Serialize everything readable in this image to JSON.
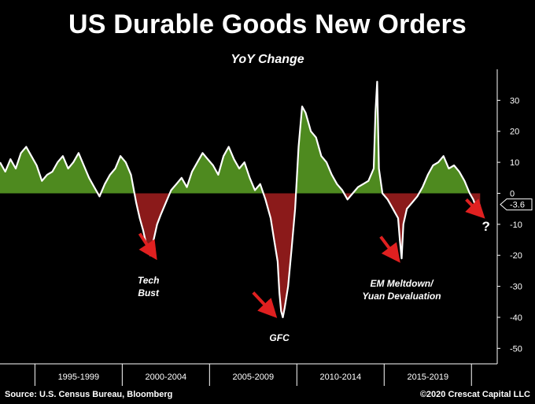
{
  "page": {
    "title": "US Durable Goods New Orders",
    "source": "Source: U.S. Census Bureau, Bloomberg",
    "copyright": "©2020 Crescat Capital LLC"
  },
  "chart_data": {
    "type": "area",
    "title": "US Durable Goods New Orders",
    "subtitle": "YoY Change",
    "xlabel": "",
    "ylabel": "",
    "xlim": [
      1993.0,
      2020.8
    ],
    "ylim": [
      -55,
      40
    ],
    "y_ticks": [
      30,
      20,
      10,
      0,
      -10,
      -20,
      -30,
      -40,
      -50
    ],
    "y_axis_side": "right",
    "grid": false,
    "period_labels": [
      "1995-1999",
      "2000-2004",
      "2005-2009",
      "2010-2014",
      "2015-2019"
    ],
    "period_boundaries": [
      1995.0,
      2000.0,
      2005.0,
      2010.0,
      2015.0,
      2020.0
    ],
    "last_value_label": "-3.6",
    "colors": {
      "line": "#ffffff",
      "positive_fill": "#4e8a1f",
      "negative_fill": "#8b1a1a",
      "arrow": "#e02020"
    },
    "annotations": [
      {
        "lines": [
          "Tech",
          "Bust"
        ],
        "x": 2001.5,
        "y": -22
      },
      {
        "lines": [
          "GFC"
        ],
        "x": 2009.0,
        "y": -40.5
      },
      {
        "lines": [
          "EM Meltdown/",
          "Yuan Devaluation"
        ],
        "x": 2016.0,
        "y": -22
      },
      {
        "lines": [
          "?"
        ],
        "x": 2020.2,
        "y": -6
      }
    ],
    "x": [
      1993.0,
      1993.3,
      1993.6,
      1993.9,
      1994.2,
      1994.5,
      1994.8,
      1995.1,
      1995.4,
      1995.7,
      1996.0,
      1996.3,
      1996.6,
      1996.9,
      1997.2,
      1997.5,
      1997.8,
      1998.1,
      1998.4,
      1998.7,
      1999.0,
      1999.3,
      1999.6,
      1999.9,
      2000.2,
      2000.5,
      2000.8,
      2001.0,
      2001.2,
      2001.4,
      2001.6,
      2001.8,
      2002.0,
      2002.2,
      2002.5,
      2002.8,
      2003.1,
      2003.4,
      2003.7,
      2004.0,
      2004.3,
      2004.6,
      2004.9,
      2005.2,
      2005.5,
      2005.8,
      2006.1,
      2006.4,
      2006.7,
      2007.0,
      2007.3,
      2007.6,
      2007.9,
      2008.2,
      2008.5,
      2008.7,
      2008.9,
      2009.0,
      2009.1,
      2009.2,
      2009.3,
      2009.5,
      2009.7,
      2009.9,
      2010.0,
      2010.1,
      2010.3,
      2010.5,
      2010.8,
      2011.1,
      2011.4,
      2011.7,
      2012.0,
      2012.3,
      2012.6,
      2012.9,
      2013.2,
      2013.5,
      2013.8,
      2014.1,
      2014.4,
      2014.5,
      2014.6,
      2014.7,
      2014.9,
      2015.2,
      2015.5,
      2015.8,
      2015.9,
      2016.0,
      2016.1,
      2016.3,
      2016.6,
      2016.9,
      2017.2,
      2017.5,
      2017.8,
      2018.1,
      2018.4,
      2018.7,
      2019.0,
      2019.3,
      2019.6,
      2019.9,
      2020.1,
      2020.3,
      2020.5
    ],
    "values": [
      10,
      7,
      11,
      8,
      13,
      15,
      12,
      9,
      4,
      6,
      7,
      10,
      12,
      8,
      10,
      13,
      9,
      5,
      2,
      -1,
      3,
      6,
      8,
      12,
      10,
      6,
      -3,
      -8,
      -12,
      -17,
      -20,
      -15,
      -10,
      -7,
      -3,
      1,
      3,
      5,
      2,
      7,
      10,
      13,
      11,
      9,
      6,
      12,
      15,
      11,
      8,
      10,
      5,
      1,
      3,
      -2,
      -8,
      -15,
      -22,
      -32,
      -38,
      -40,
      -37,
      -30,
      -18,
      -5,
      5,
      15,
      28,
      26,
      20,
      18,
      12,
      10,
      6,
      3,
      1,
      -2,
      0,
      2,
      3,
      4,
      8,
      26,
      36,
      8,
      0,
      -2,
      -5,
      -8,
      -15,
      -21,
      -10,
      -5,
      -3,
      -1,
      2,
      6,
      9,
      10,
      12,
      8,
      9,
      7,
      4,
      0,
      -2,
      -5,
      -3.6
    ]
  }
}
